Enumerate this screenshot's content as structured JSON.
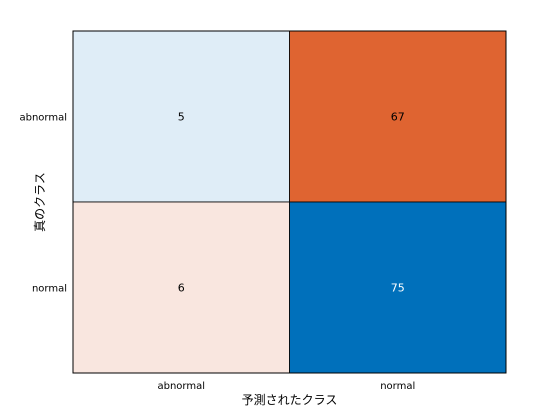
{
  "chart_data": {
    "type": "heatmap",
    "title": "",
    "xlabel": "予測されたクラス",
    "ylabel": "真のクラス",
    "x_categories": [
      "abnormal",
      "normal"
    ],
    "y_categories": [
      "abnormal",
      "normal"
    ],
    "values": [
      [
        5,
        67
      ],
      [
        6,
        75
      ]
    ],
    "cell_colors": [
      [
        "#dfedf7",
        "#df6431"
      ],
      [
        "#f9e6df",
        "#0070bb"
      ]
    ],
    "text_colors": [
      [
        "#000000",
        "#000000"
      ],
      [
        "#000000",
        "#ffffff"
      ]
    ],
    "grid": false
  }
}
